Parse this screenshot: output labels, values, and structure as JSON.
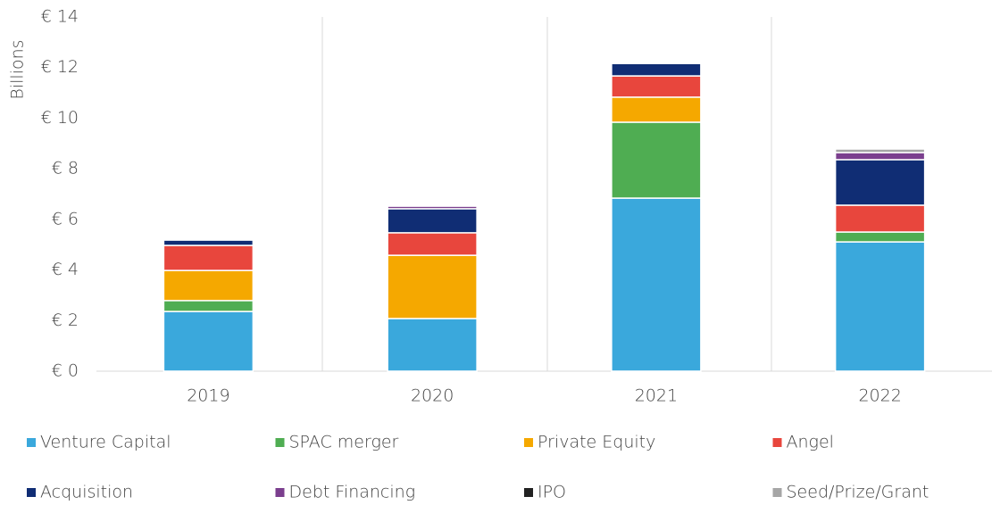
{
  "chart_data": {
    "type": "stacked_bar",
    "y_axis_label": "Billions",
    "categories": [
      "2019",
      "2020",
      "2021",
      "2022"
    ],
    "series": [
      {
        "name": "Venture Capital",
        "color": "#3aa8dc",
        "values": [
          2.36,
          2.08,
          6.84,
          5.11
        ]
      },
      {
        "name": "SPAC merger",
        "color": "#4fad52",
        "values": [
          0.43,
          0,
          3.0,
          0.39
        ]
      },
      {
        "name": "Private Equity",
        "color": "#f5a800",
        "values": [
          1.19,
          2.5,
          0.99,
          0
        ]
      },
      {
        "name": "Angel",
        "color": "#e8463d",
        "values": [
          0.99,
          0.89,
          0.84,
          1.06
        ]
      },
      {
        "name": "Acquisition",
        "color": "#102d74",
        "values": [
          0.21,
          0.95,
          0.49,
          1.8
        ]
      },
      {
        "name": "Debt Financing",
        "color": "#7b3f8e",
        "values": [
          0,
          0.1,
          0,
          0.28
        ]
      },
      {
        "name": "IPO",
        "color": "#222222",
        "values": [
          0,
          0,
          0,
          0
        ]
      },
      {
        "name": "Seed/Prize/Grant",
        "color": "#a6a6a6",
        "values": [
          0,
          0,
          0,
          0.14
        ]
      }
    ],
    "ylim": [
      0,
      14
    ],
    "yticks": [
      {
        "value": 0,
        "label": "€ 0"
      },
      {
        "value": 2,
        "label": "€ 2"
      },
      {
        "value": 4,
        "label": "€ 4"
      },
      {
        "value": 6,
        "label": "€ 6"
      },
      {
        "value": 8,
        "label": "€ 8"
      },
      {
        "value": 10,
        "label": "€ 10"
      },
      {
        "value": 12,
        "label": "€ 12"
      },
      {
        "value": 14,
        "label": "€ 14"
      }
    ],
    "legend": "bottom"
  }
}
